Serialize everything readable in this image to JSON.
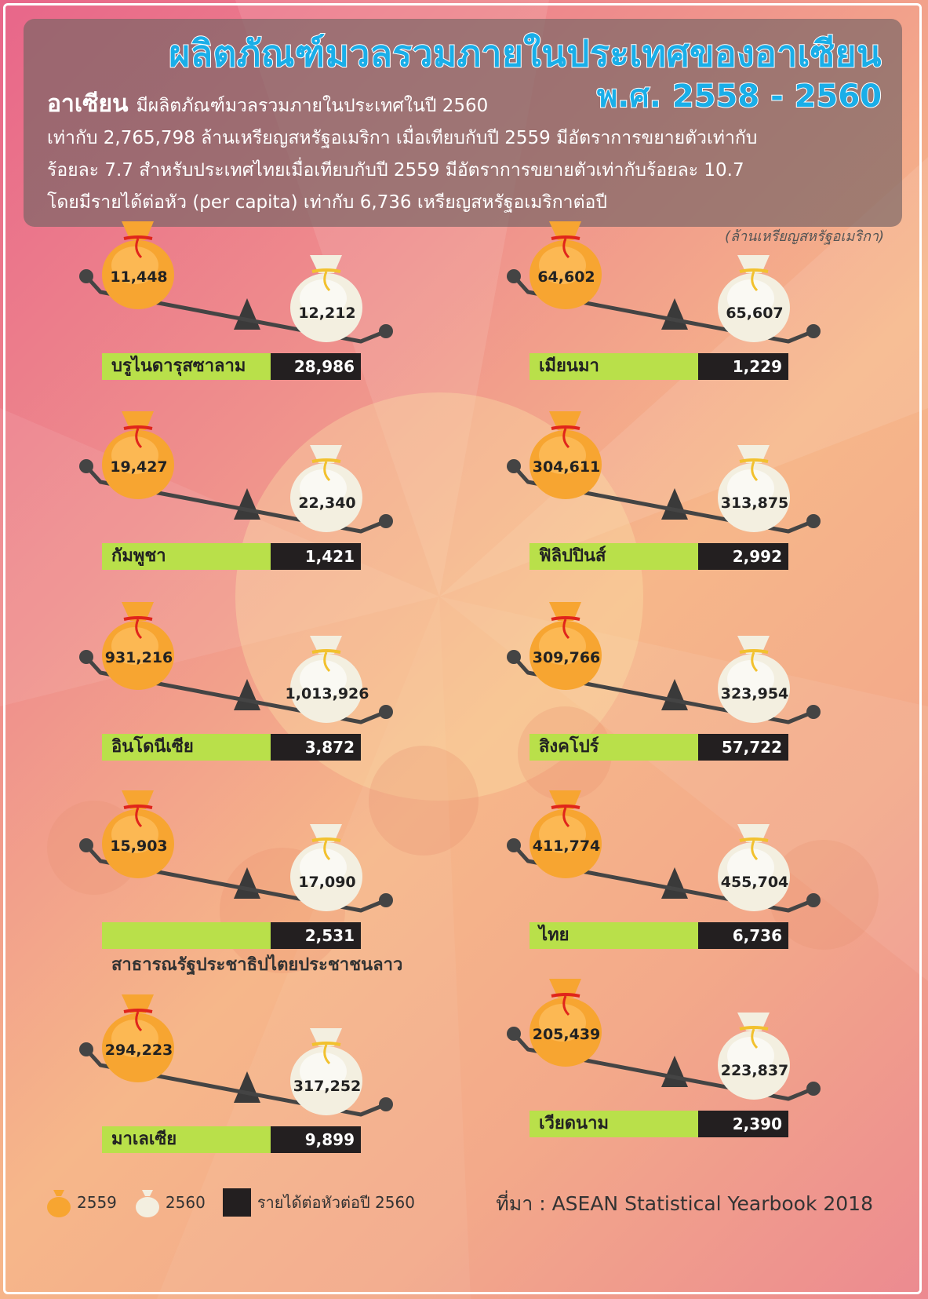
{
  "title": "ผลิตภัณฑ์มวลรวมภายในประเทศของอาเซียน",
  "subtitle": "พ.ศ. 2558 - 2560",
  "intro": {
    "lead": "อาเซียน",
    "line1": "มีผลิตภัณฑ์มวลรวมภายในประเทศในปี 2560",
    "line2": "เท่ากับ 2,765,798 ล้านเหรียญสหรัฐอเมริกา เมื่อเทียบกับปี 2559 มีอัตราการขยายตัวเท่ากับ",
    "line3": "ร้อยละ 7.7 สำหรับประเทศไทยเมื่อเทียบกับปี 2559 มีอัตราการขยายตัวเท่ากับร้อยละ 10.7",
    "line4": "โดยมีรายได้ต่อหัว (per capita) เท่ากับ 6,736 เหรียญสหรัฐอเมริกาต่อปี"
  },
  "unit_note": "(ล้านเหรียญสหรัฐอเมริกา)",
  "colors": {
    "bag_2559": "#f7a531",
    "bag_2560": "#f3efe0",
    "label_green": "#b9e04a",
    "label_dark": "#231f20",
    "title_blue": "#1aaee8"
  },
  "chart_data": {
    "type": "table",
    "columns": [
      "2559",
      "2560",
      "รายได้ต่อหัวต่อปี 2560"
    ],
    "countries": [
      {
        "name": "บรูไนดารุสซาลาม",
        "gdp_2559": "11,448",
        "gdp_2560": "12,212",
        "per_capita_2560": "28,986"
      },
      {
        "name": "เมียนมา",
        "gdp_2559": "64,602",
        "gdp_2560": "65,607",
        "per_capita_2560": "1,229"
      },
      {
        "name": "กัมพูชา",
        "gdp_2559": "19,427",
        "gdp_2560": "22,340",
        "per_capita_2560": "1,421"
      },
      {
        "name": "ฟิลิปปินส์",
        "gdp_2559": "304,611",
        "gdp_2560": "313,875",
        "per_capita_2560": "2,992"
      },
      {
        "name": "อินโดนีเซีย",
        "gdp_2559": "931,216",
        "gdp_2560": "1,013,926",
        "per_capita_2560": "3,872"
      },
      {
        "name": "สิงคโปร์",
        "gdp_2559": "309,766",
        "gdp_2560": "323,954",
        "per_capita_2560": "57,722"
      },
      {
        "name": "สาธารณรัฐประชาธิปไตยประชาชนลาว",
        "gdp_2559": "15,903",
        "gdp_2560": "17,090",
        "per_capita_2560": "2,531"
      },
      {
        "name": "ไทย",
        "gdp_2559": "411,774",
        "gdp_2560": "455,704",
        "per_capita_2560": "6,736"
      },
      {
        "name": "มาเลเซีย",
        "gdp_2559": "294,223",
        "gdp_2560": "317,252",
        "per_capita_2560": "9,899"
      },
      {
        "name": "เวียดนาม",
        "gdp_2559": "205,439",
        "gdp_2560": "223,837",
        "per_capita_2560": "2,390"
      }
    ]
  },
  "legend": {
    "y2559": "2559",
    "y2560": "2560",
    "per_capita": "รายได้ต่อหัวต่อปี 2560"
  },
  "source": "ที่มา : ASEAN Statistical Yearbook 2018"
}
